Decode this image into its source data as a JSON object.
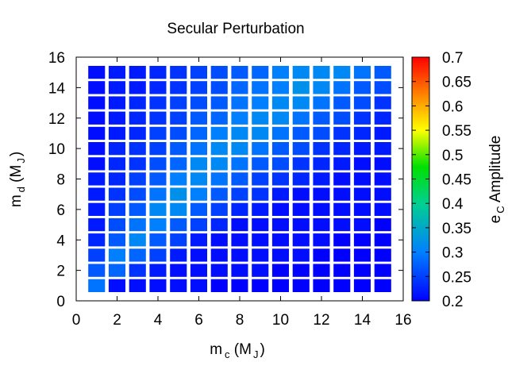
{
  "chart_data": {
    "type": "heatmap",
    "title": "Secular Perturbation",
    "xlabel": {
      "main": "m",
      "sub": "c",
      "unit_open": " (M",
      "unit_sub": "J",
      "unit_close": ")"
    },
    "ylabel": {
      "main": "m",
      "sub": "d",
      "unit_open": " (M",
      "unit_sub": "J",
      "unit_close": ")"
    },
    "colorbar_label": {
      "main": "e",
      "sub": "C",
      "rest": " Amplitude"
    },
    "xlim": [
      0,
      16
    ],
    "ylim": [
      0,
      16
    ],
    "x_ticks": [
      0,
      2,
      4,
      6,
      8,
      10,
      12,
      14,
      16
    ],
    "y_ticks": [
      0,
      2,
      4,
      6,
      8,
      10,
      12,
      14,
      16
    ],
    "color_range": [
      0.2,
      0.7
    ],
    "colorbar_ticks": [
      0.2,
      0.25,
      0.3,
      0.35,
      0.4,
      0.45,
      0.5,
      0.55,
      0.6,
      0.65,
      0.7
    ],
    "colorbar_tick_labels": [
      "0.2",
      "0.25",
      "0.3",
      "0.35",
      "0.4",
      "0.45",
      "0.5",
      "0.55",
      "0.6",
      "0.65",
      "0.7"
    ],
    "x": [
      1,
      2,
      3,
      4,
      5,
      6,
      7,
      8,
      9,
      10,
      11,
      12,
      13,
      14,
      15
    ],
    "y": [
      1,
      2,
      3,
      4,
      5,
      6,
      7,
      8,
      9,
      10,
      11,
      12,
      13,
      14,
      15
    ],
    "z": [
      [
        0.29,
        0.21,
        0.21,
        0.21,
        0.21,
        0.21,
        0.2,
        0.2,
        0.2,
        0.2,
        0.2,
        0.2,
        0.2,
        0.2,
        0.2
      ],
      [
        0.27,
        0.28,
        0.24,
        0.22,
        0.21,
        0.21,
        0.21,
        0.21,
        0.21,
        0.2,
        0.2,
        0.2,
        0.2,
        0.2,
        0.2
      ],
      [
        0.25,
        0.3,
        0.28,
        0.25,
        0.22,
        0.21,
        0.21,
        0.21,
        0.21,
        0.21,
        0.21,
        0.2,
        0.2,
        0.2,
        0.2
      ],
      [
        0.23,
        0.27,
        0.31,
        0.27,
        0.25,
        0.22,
        0.21,
        0.21,
        0.21,
        0.21,
        0.21,
        0.21,
        0.2,
        0.2,
        0.2
      ],
      [
        0.22,
        0.26,
        0.29,
        0.3,
        0.27,
        0.25,
        0.23,
        0.21,
        0.21,
        0.21,
        0.21,
        0.21,
        0.21,
        0.21,
        0.2
      ],
      [
        0.22,
        0.25,
        0.27,
        0.31,
        0.31,
        0.27,
        0.25,
        0.23,
        0.22,
        0.21,
        0.21,
        0.21,
        0.21,
        0.21,
        0.21
      ],
      [
        0.22,
        0.24,
        0.26,
        0.29,
        0.32,
        0.3,
        0.27,
        0.25,
        0.24,
        0.22,
        0.21,
        0.21,
        0.21,
        0.21,
        0.21
      ],
      [
        0.22,
        0.23,
        0.25,
        0.27,
        0.3,
        0.31,
        0.29,
        0.27,
        0.25,
        0.24,
        0.23,
        0.22,
        0.21,
        0.21,
        0.21
      ],
      [
        0.21,
        0.23,
        0.24,
        0.26,
        0.28,
        0.31,
        0.31,
        0.29,
        0.27,
        0.26,
        0.24,
        0.23,
        0.22,
        0.21,
        0.21
      ],
      [
        0.21,
        0.23,
        0.24,
        0.25,
        0.27,
        0.29,
        0.31,
        0.31,
        0.29,
        0.27,
        0.26,
        0.24,
        0.23,
        0.22,
        0.22
      ],
      [
        0.21,
        0.22,
        0.23,
        0.25,
        0.26,
        0.28,
        0.3,
        0.31,
        0.31,
        0.29,
        0.27,
        0.26,
        0.24,
        0.23,
        0.22
      ],
      [
        0.21,
        0.22,
        0.23,
        0.24,
        0.25,
        0.27,
        0.28,
        0.3,
        0.31,
        0.31,
        0.29,
        0.27,
        0.26,
        0.24,
        0.23
      ],
      [
        0.21,
        0.22,
        0.23,
        0.24,
        0.25,
        0.26,
        0.27,
        0.29,
        0.3,
        0.31,
        0.31,
        0.29,
        0.27,
        0.26,
        0.24
      ],
      [
        0.21,
        0.22,
        0.22,
        0.23,
        0.24,
        0.25,
        0.26,
        0.28,
        0.29,
        0.3,
        0.32,
        0.31,
        0.29,
        0.27,
        0.26
      ],
      [
        0.21,
        0.22,
        0.22,
        0.23,
        0.24,
        0.25,
        0.26,
        0.27,
        0.28,
        0.3,
        0.31,
        0.31,
        0.31,
        0.29,
        0.27
      ]
    ],
    "colormap": "rainbow (blue to red)",
    "grid": false,
    "legend": "colorbar-right"
  }
}
